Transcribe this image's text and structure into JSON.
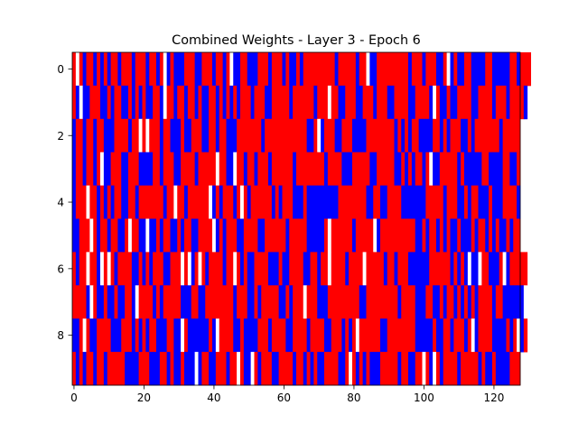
{
  "chart_data": {
    "type": "heatmap",
    "title": "Combined Weights - Layer 3 - Epoch 6",
    "xlabel": "",
    "ylabel": "",
    "n_rows": 10,
    "n_cols": 128,
    "x_ticks": [
      0,
      20,
      40,
      60,
      80,
      100,
      120
    ],
    "y_ticks": [
      0,
      2,
      4,
      6,
      8
    ],
    "xlim": [
      -0.5,
      127.5
    ],
    "ylim": [
      9.5,
      -0.5
    ],
    "colors": {
      "negative": "#0000ff",
      "zero": "#ffffff",
      "positive": "#ff0000"
    },
    "value_encoding": "-1 = blue, 0 = white, 1 = red",
    "rows": [
      [
        1,
        0,
        1,
        -1,
        1,
        1,
        -1,
        1,
        -1,
        1,
        -1,
        1,
        1,
        -1,
        1,
        1,
        1,
        -1,
        1,
        1,
        1,
        -1,
        1,
        1,
        -1,
        1,
        0,
        -1,
        1,
        -1,
        -1,
        -1,
        1,
        1,
        1,
        -1,
        -1,
        1,
        1,
        1,
        -1,
        1,
        1,
        -1,
        1,
        0,
        -1,
        -1,
        1,
        1,
        -1,
        -1,
        -1,
        1,
        1,
        1,
        -1,
        1,
        1,
        1,
        -1,
        1,
        -1,
        -1,
        1,
        -1,
        1,
        1,
        1,
        1,
        1,
        1,
        1,
        1,
        1,
        -1,
        1,
        1,
        1,
        1,
        1,
        -1,
        1,
        1,
        0,
        -1,
        -1,
        1,
        1,
        1,
        1,
        1,
        1,
        1,
        1,
        1,
        -1,
        1,
        1,
        1,
        -1,
        1,
        1,
        1,
        -1,
        -1,
        1,
        0,
        -1,
        1,
        -1,
        -1,
        1,
        1,
        -1,
        -1,
        -1,
        -1,
        1,
        1,
        -1,
        -1,
        -1,
        -1,
        -1,
        1,
        1,
        -1,
        1,
        1,
        1
      ],
      [
        1,
        -1,
        0,
        -1,
        -1,
        1,
        1,
        1,
        -1,
        -1,
        1,
        -1,
        1,
        1,
        -1,
        -1,
        1,
        -1,
        1,
        -1,
        1,
        -1,
        -1,
        1,
        1,
        -1,
        0,
        1,
        1,
        -1,
        1,
        1,
        -1,
        1,
        1,
        -1,
        1,
        -1,
        -1,
        1,
        1,
        -1,
        1,
        -1,
        1,
        -1,
        1,
        -1,
        1,
        1,
        1,
        -1,
        1,
        1,
        1,
        -1,
        -1,
        1,
        1,
        1,
        1,
        1,
        -1,
        1,
        1,
        1,
        1,
        1,
        1,
        -1,
        1,
        1,
        1,
        0,
        1,
        1,
        -1,
        -1,
        1,
        1,
        1,
        -1,
        -1,
        1,
        1,
        1,
        -1,
        1,
        1,
        1,
        -1,
        -1,
        1,
        1,
        1,
        1,
        -1,
        -1,
        1,
        1,
        1,
        1,
        -1,
        0,
        1,
        -1,
        -1,
        1,
        -1,
        -1,
        1,
        1,
        1,
        1,
        -1,
        -1,
        1,
        1,
        1,
        1,
        -1,
        1,
        1,
        1,
        -1,
        1,
        1,
        1,
        1,
        -1
      ],
      [
        -1,
        1,
        1,
        -1,
        1,
        1,
        -1,
        1,
        1,
        -1,
        -1,
        -1,
        1,
        1,
        1,
        1,
        -1,
        1,
        1,
        0,
        1,
        0,
        1,
        1,
        1,
        -1,
        1,
        1,
        -1,
        -1,
        -1,
        1,
        -1,
        -1,
        1,
        1,
        1,
        -1,
        -1,
        1,
        1,
        -1,
        1,
        1,
        -1,
        -1,
        -1,
        1,
        1,
        1,
        1,
        1,
        1,
        1,
        -1,
        1,
        1,
        1,
        1,
        1,
        1,
        1,
        1,
        1,
        1,
        1,
        1,
        -1,
        -1,
        1,
        0,
        -1,
        1,
        1,
        1,
        -1,
        -1,
        1,
        1,
        1,
        -1,
        -1,
        -1,
        -1,
        1,
        1,
        1,
        1,
        1,
        1,
        1,
        1,
        -1,
        1,
        -1,
        1,
        -1,
        1,
        1,
        -1,
        -1,
        -1,
        -1,
        1,
        1,
        -1,
        1,
        -1,
        1,
        1,
        1,
        -1,
        -1,
        1,
        -1,
        1,
        1,
        1,
        1,
        1,
        1,
        1,
        -1,
        1,
        1,
        1,
        1,
        1
      ],
      [
        -1,
        1,
        1,
        -1,
        1,
        1,
        -1,
        1,
        0,
        -1,
        -1,
        1,
        1,
        1,
        -1,
        -1,
        1,
        1,
        1,
        -1,
        -1,
        -1,
        -1,
        1,
        1,
        -1,
        1,
        1,
        1,
        -1,
        -1,
        1,
        1,
        1,
        1,
        -1,
        1,
        1,
        1,
        1,
        1,
        0,
        1,
        1,
        -1,
        -1,
        0,
        1,
        1,
        -1,
        1,
        1,
        -1,
        1,
        1,
        1,
        -1,
        1,
        1,
        1,
        1,
        1,
        1,
        -1,
        1,
        1,
        1,
        1,
        1,
        1,
        1,
        1,
        -1,
        1,
        1,
        1,
        1,
        -1,
        -1,
        -1,
        1,
        1,
        1,
        1,
        1,
        -1,
        -1,
        1,
        1,
        1,
        1,
        1,
        -1,
        -1,
        1,
        -1,
        1,
        -1,
        1,
        1,
        -1,
        1,
        0,
        -1,
        -1,
        1,
        1,
        1,
        1,
        1,
        -1,
        1,
        -1,
        -1,
        -1,
        -1,
        -1,
        1,
        1,
        -1,
        -1,
        -1,
        -1,
        1,
        1,
        -1,
        -1,
        1
      ],
      [
        -1,
        1,
        1,
        1,
        0,
        1,
        1,
        -1,
        1,
        -1,
        1,
        -1,
        1,
        1,
        -1,
        -1,
        1,
        1,
        -1,
        1,
        1,
        1,
        1,
        1,
        1,
        1,
        -1,
        1,
        1,
        0,
        1,
        1,
        -1,
        1,
        1,
        1,
        1,
        1,
        1,
        0,
        -1,
        1,
        -1,
        1,
        1,
        1,
        -1,
        1,
        0,
        1,
        -1,
        1,
        1,
        1,
        1,
        1,
        1,
        -1,
        1,
        -1,
        1,
        1,
        1,
        -1,
        -1,
        -1,
        1,
        -1,
        -1,
        -1,
        -1,
        -1,
        -1,
        -1,
        -1,
        -1,
        1,
        1,
        1,
        1,
        1,
        1,
        1,
        1,
        -1,
        -1,
        1,
        1,
        -1,
        -1,
        1,
        1,
        1,
        1,
        -1,
        -1,
        -1,
        -1,
        -1,
        -1,
        -1,
        1,
        1,
        1,
        1,
        1,
        -1,
        1,
        1,
        1,
        -1,
        -1,
        1,
        -1,
        1,
        1,
        -1,
        -1,
        -1,
        1,
        -1,
        -1,
        -1,
        1,
        1,
        1,
        1,
        -1
      ],
      [
        -1,
        -1,
        1,
        1,
        1,
        0,
        1,
        -1,
        1,
        1,
        -1,
        1,
        1,
        -1,
        -1,
        1,
        0,
        1,
        1,
        -1,
        -1,
        0,
        -1,
        -1,
        1,
        -1,
        1,
        1,
        -1,
        -1,
        1,
        -1,
        1,
        1,
        -1,
        -1,
        1,
        1,
        1,
        1,
        0,
        -1,
        1,
        -1,
        1,
        1,
        1,
        -1,
        -1,
        1,
        1,
        1,
        1,
        -1,
        -1,
        1,
        1,
        1,
        1,
        1,
        1,
        -1,
        1,
        1,
        1,
        1,
        1,
        -1,
        -1,
        -1,
        -1,
        -1,
        1,
        0,
        1,
        1,
        1,
        1,
        1,
        1,
        -1,
        1,
        1,
        1,
        1,
        1,
        0,
        -1,
        1,
        1,
        1,
        1,
        1,
        1,
        1,
        1,
        1,
        1,
        -1,
        -1,
        1,
        -1,
        1,
        1,
        -1,
        1,
        -1,
        1,
        -1,
        -1,
        1,
        -1,
        -1,
        -1,
        1,
        -1,
        1,
        1,
        -1,
        1,
        -1,
        1,
        -1,
        -1,
        1,
        -1,
        1,
        1
      ],
      [
        1,
        -1,
        1,
        1,
        0,
        1,
        1,
        -1,
        0,
        1,
        0,
        1,
        -1,
        1,
        1,
        1,
        1,
        -1,
        -1,
        1,
        -1,
        1,
        -1,
        1,
        1,
        1,
        -1,
        -1,
        1,
        1,
        1,
        0,
        1,
        0,
        -1,
        1,
        0,
        1,
        -1,
        1,
        1,
        1,
        1,
        -1,
        1,
        1,
        0,
        1,
        -1,
        1,
        -1,
        -1,
        1,
        1,
        1,
        1,
        -1,
        -1,
        -1,
        1,
        -1,
        -1,
        1,
        1,
        1,
        1,
        -1,
        -1,
        1,
        1,
        -1,
        1,
        1,
        0,
        1,
        1,
        1,
        1,
        -1,
        1,
        1,
        1,
        1,
        0,
        1,
        1,
        1,
        1,
        1,
        -1,
        1,
        1,
        -1,
        1,
        1,
        1,
        -1,
        -1,
        -1,
        -1,
        -1,
        -1,
        1,
        1,
        1,
        1,
        1,
        1,
        -1,
        1,
        -1,
        1,
        -1,
        0,
        -1,
        -1,
        0,
        1,
        1,
        -1,
        -1,
        -1,
        1,
        0,
        -1,
        1,
        1,
        1,
        1,
        1
      ],
      [
        1,
        1,
        1,
        1,
        -1,
        0,
        1,
        -1,
        -1,
        1,
        -1,
        -1,
        1,
        -1,
        -1,
        1,
        1,
        -1,
        0,
        1,
        1,
        1,
        1,
        -1,
        1,
        -1,
        1,
        1,
        1,
        1,
        1,
        -1,
        -1,
        -1,
        1,
        1,
        -1,
        -1,
        1,
        1,
        1,
        1,
        1,
        1,
        1,
        1,
        -1,
        1,
        1,
        1,
        -1,
        -1,
        1,
        -1,
        1,
        1,
        1,
        1,
        1,
        -1,
        -1,
        1,
        -1,
        1,
        1,
        1,
        0,
        1,
        1,
        1,
        -1,
        -1,
        -1,
        1,
        1,
        1,
        1,
        1,
        1,
        1,
        1,
        1,
        -1,
        -1,
        1,
        1,
        1,
        1,
        1,
        1,
        1,
        1,
        1,
        -1,
        1,
        1,
        1,
        1,
        -1,
        -1,
        -1,
        1,
        1,
        -1,
        -1,
        1,
        -1,
        1,
        1,
        -1,
        1,
        -1,
        1,
        -1,
        1,
        -1,
        1,
        1,
        1,
        1,
        -1,
        1,
        1,
        -1,
        -1,
        -1,
        -1,
        -1,
        -1,
        0
      ],
      [
        -1,
        -1,
        1,
        0,
        1,
        -1,
        -1,
        1,
        1,
        1,
        1,
        -1,
        -1,
        -1,
        1,
        1,
        1,
        -1,
        1,
        -1,
        1,
        -1,
        1,
        1,
        -1,
        -1,
        -1,
        1,
        1,
        -1,
        -1,
        0,
        1,
        -1,
        -1,
        -1,
        -1,
        -1,
        -1,
        1,
        -1,
        0,
        1,
        1,
        1,
        1,
        -1,
        -1,
        1,
        -1,
        -1,
        -1,
        -1,
        1,
        1,
        1,
        -1,
        1,
        1,
        1,
        1,
        -1,
        -1,
        1,
        1,
        1,
        1,
        -1,
        1,
        1,
        1,
        1,
        -1,
        -1,
        1,
        1,
        1,
        -1,
        1,
        -1,
        1,
        0,
        1,
        1,
        1,
        1,
        1,
        1,
        -1,
        -1,
        1,
        1,
        1,
        1,
        1,
        1,
        1,
        1,
        -1,
        -1,
        -1,
        -1,
        -1,
        1,
        -1,
        -1,
        1,
        1,
        -1,
        1,
        1,
        1,
        -1,
        1,
        0,
        -1,
        1,
        1,
        1,
        1,
        -1,
        -1,
        -1,
        -1,
        1,
        -1,
        1,
        0,
        -1,
        1
      ],
      [
        1,
        -1,
        1,
        -1,
        1,
        1,
        -1,
        1,
        1,
        -1,
        1,
        1,
        1,
        1,
        1,
        -1,
        -1,
        -1,
        -1,
        1,
        1,
        1,
        -1,
        -1,
        -1,
        1,
        1,
        -1,
        1,
        -1,
        -1,
        1,
        -1,
        -1,
        -1,
        0,
        -1,
        1,
        1,
        -1,
        -1,
        1,
        1,
        1,
        -1,
        1,
        1,
        0,
        1,
        -1,
        -1,
        0,
        1,
        -1,
        1,
        1,
        1,
        -1,
        -1,
        1,
        1,
        1,
        1,
        -1,
        1,
        1,
        -1,
        1,
        -1,
        1,
        -1,
        -1,
        1,
        1,
        1,
        1,
        -1,
        -1,
        1,
        0,
        1,
        -1,
        1,
        -1,
        1,
        -1,
        -1,
        -1,
        1,
        1,
        1,
        1,
        1,
        -1,
        1,
        1,
        -1,
        -1,
        1,
        1,
        0,
        1,
        -1,
        0,
        1,
        -1,
        1,
        1,
        1,
        1,
        -1,
        1,
        1,
        1,
        1,
        1,
        -1,
        1,
        -1,
        -1,
        1,
        -1,
        -1,
        -1,
        -1,
        1,
        1,
        1
      ]
    ]
  }
}
